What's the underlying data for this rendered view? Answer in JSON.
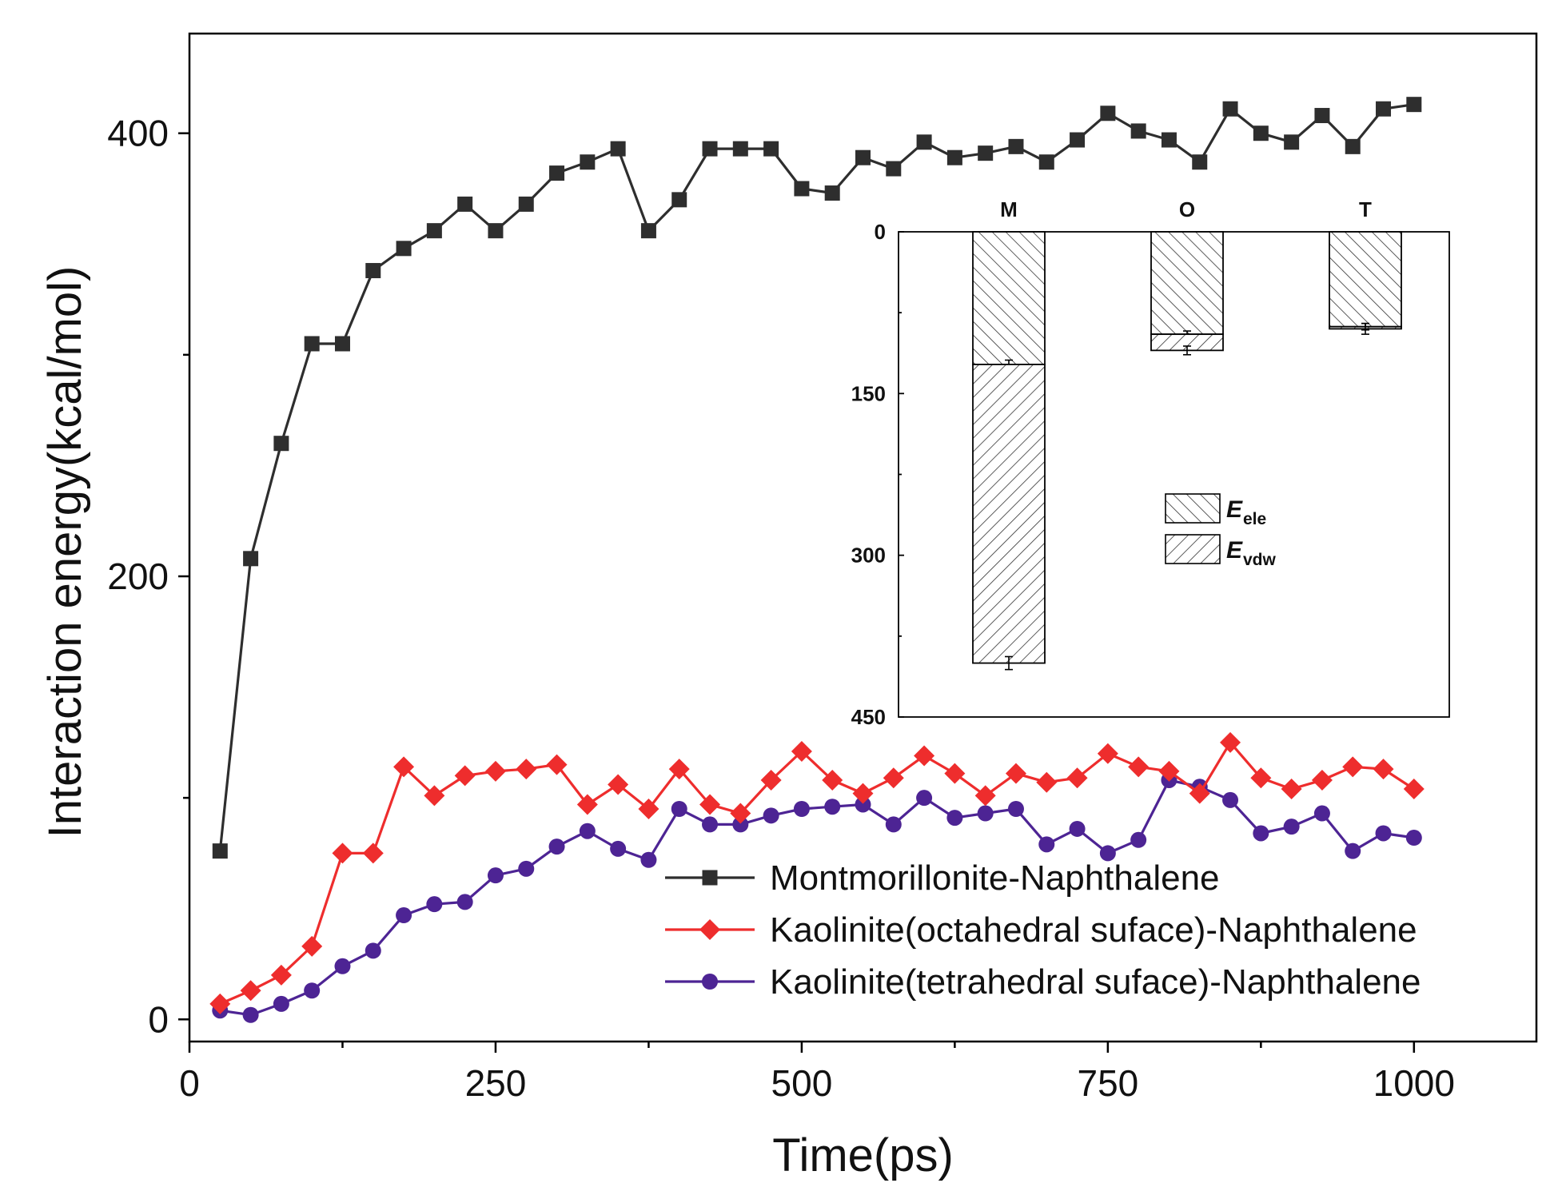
{
  "chart_data": [
    {
      "type": "line",
      "xlabel": "Time(ps)",
      "ylabel": "Interaction energy(kcal/mol)",
      "xlim": [
        0,
        1100
      ],
      "ylim": [
        -10,
        445
      ],
      "xticks": [
        {
          "value": 0,
          "label": "0"
        },
        {
          "value": 250,
          "label": "250"
        },
        {
          "value": 500,
          "label": "500"
        },
        {
          "value": 750,
          "label": "750"
        },
        {
          "value": 1000,
          "label": "1000"
        }
      ],
      "yticks": [
        {
          "value": 0,
          "label": "0"
        },
        {
          "value": 200,
          "label": "200"
        },
        {
          "value": 400,
          "label": "400"
        }
      ],
      "legend_position": "bottom-right",
      "x": [
        25,
        50,
        75,
        100,
        125,
        150,
        175,
        200,
        225,
        250,
        275,
        300,
        325,
        350,
        375,
        400,
        425,
        450,
        475,
        500,
        525,
        550,
        575,
        600,
        625,
        650,
        675,
        700,
        725,
        750,
        775,
        800,
        825,
        850,
        875,
        900,
        925,
        950,
        975,
        1000
      ],
      "series": [
        {
          "name": "Montmorillonite-Naphthalene",
          "color": "#2e2e2e",
          "marker": "square",
          "values": [
            76,
            208,
            260,
            305,
            305,
            338,
            348,
            356,
            368,
            356,
            368,
            382,
            387,
            393,
            356,
            370,
            393,
            393,
            393,
            375,
            373,
            389,
            384,
            396,
            389,
            391,
            394,
            387,
            397,
            409,
            401,
            397,
            387,
            411,
            400,
            396,
            408,
            394,
            411,
            413
          ]
        },
        {
          "name": "Kaolinite(octahedral suface)-Naphthalene",
          "color": "#ee2d2d",
          "marker": "diamond",
          "values": [
            7,
            13,
            20,
            33,
            75,
            75,
            114,
            101,
            110,
            112,
            113,
            115,
            97,
            106,
            95,
            113,
            97,
            93,
            108,
            121,
            108,
            102,
            109,
            119,
            111,
            101,
            111,
            107,
            109,
            120,
            114,
            112,
            102,
            125,
            109,
            104,
            108,
            114,
            113,
            104
          ]
        },
        {
          "name": "Kaolinite(tetrahedral suface)-Naphthalene",
          "color": "#4d2494",
          "marker": "circle",
          "values": [
            4,
            2,
            7,
            13,
            24,
            31,
            47,
            52,
            53,
            65,
            68,
            78,
            85,
            77,
            72,
            95,
            88,
            88,
            92,
            95,
            96,
            97,
            88,
            100,
            91,
            93,
            95,
            79,
            86,
            75,
            81,
            108,
            105,
            99,
            84,
            87,
            93,
            76,
            84,
            82
          ]
        }
      ]
    },
    {
      "type": "bar",
      "subtype": "stacked",
      "categories": [
        "M",
        "O",
        "T"
      ],
      "y_inverted": true,
      "ylim": [
        0,
        450
      ],
      "yticks": [
        {
          "value": 0,
          "label": "0"
        },
        {
          "value": 150,
          "label": "150"
        },
        {
          "value": 300,
          "label": "300"
        },
        {
          "value": 450,
          "label": "450"
        }
      ],
      "legend_position": "center-right",
      "series": [
        {
          "name": "E_ele",
          "label_main": "E",
          "label_sub": "ele",
          "values": [
            123,
            95,
            88
          ],
          "errors": [
            4,
            3,
            3
          ],
          "hatch": "backslash"
        },
        {
          "name": "E_vdw",
          "label_main": "E",
          "label_sub": "vdw",
          "values": [
            277,
            15,
            2
          ],
          "errors": [
            6,
            4,
            5
          ],
          "hatch": "slash"
        }
      ]
    }
  ]
}
